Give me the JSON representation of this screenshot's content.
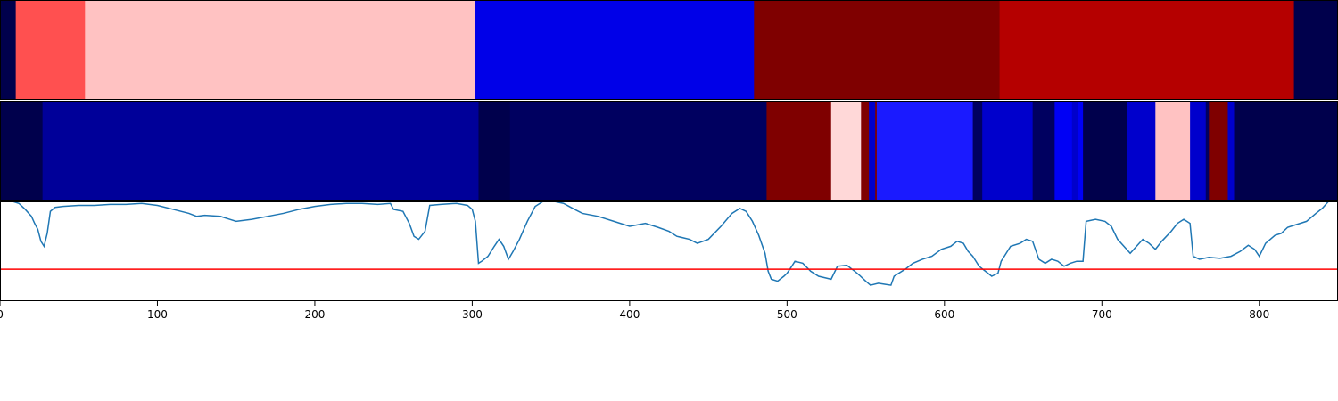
{
  "chart_data": {
    "type": "heatmap",
    "xlim": [
      0,
      850
    ],
    "x_ticks": [
      {
        "value": 0,
        "label": "0"
      },
      {
        "value": 100,
        "label": "100"
      },
      {
        "value": 200,
        "label": "200"
      },
      {
        "value": 300,
        "label": "300"
      },
      {
        "value": 400,
        "label": "400"
      },
      {
        "value": 500,
        "label": "500"
      },
      {
        "value": 600,
        "label": "600"
      },
      {
        "value": 700,
        "label": "700"
      },
      {
        "value": 800,
        "label": "800"
      }
    ],
    "colormap": "seismic",
    "grid": false,
    "tracks": [
      {
        "segments": [
          {
            "start": 0,
            "end": 10,
            "color": "#00004c"
          },
          {
            "start": 10,
            "end": 54,
            "color": "#ff5050"
          },
          {
            "start": 54,
            "end": 302,
            "color": "#ffc2c2"
          },
          {
            "start": 302,
            "end": 479,
            "color": "#0000e8"
          },
          {
            "start": 479,
            "end": 635,
            "color": "#7f0000"
          },
          {
            "start": 635,
            "end": 822,
            "color": "#b50000"
          },
          {
            "start": 822,
            "end": 850,
            "color": "#00004c"
          }
        ]
      },
      {
        "segments": [
          {
            "start": 0,
            "end": 27,
            "color": "#00004c"
          },
          {
            "start": 27,
            "end": 304,
            "color": "#000099"
          },
          {
            "start": 304,
            "end": 324,
            "color": "#00004c"
          },
          {
            "start": 324,
            "end": 487,
            "color": "#000060"
          },
          {
            "start": 487,
            "end": 528,
            "color": "#7f0000"
          },
          {
            "start": 528,
            "end": 547,
            "color": "#ffd8d8"
          },
          {
            "start": 547,
            "end": 552,
            "color": "#7f0000"
          },
          {
            "start": 552,
            "end": 556,
            "color": "#0000cc"
          },
          {
            "start": 556,
            "end": 557,
            "color": "#7f0000"
          },
          {
            "start": 557,
            "end": 618,
            "color": "#1a1aff"
          },
          {
            "start": 618,
            "end": 624,
            "color": "#000060"
          },
          {
            "start": 624,
            "end": 656,
            "color": "#0000cc"
          },
          {
            "start": 656,
            "end": 670,
            "color": "#000060"
          },
          {
            "start": 670,
            "end": 681,
            "color": "#0000f5"
          },
          {
            "start": 681,
            "end": 685,
            "color": "#0000cc"
          },
          {
            "start": 685,
            "end": 688,
            "color": "#0000f5"
          },
          {
            "start": 688,
            "end": 716,
            "color": "#00004c"
          },
          {
            "start": 716,
            "end": 734,
            "color": "#0000cc"
          },
          {
            "start": 734,
            "end": 756,
            "color": "#ffc2c2"
          },
          {
            "start": 756,
            "end": 766,
            "color": "#0000cc"
          },
          {
            "start": 766,
            "end": 768,
            "color": "#000060"
          },
          {
            "start": 768,
            "end": 780,
            "color": "#7f0000"
          },
          {
            "start": 780,
            "end": 784,
            "color": "#0000cc"
          },
          {
            "start": 784,
            "end": 850,
            "color": "#00004c"
          }
        ]
      }
    ],
    "line": {
      "color": "#1f77b4",
      "ylim": [
        0,
        1
      ],
      "points": [
        [
          0,
          1.0
        ],
        [
          8,
          1.0
        ],
        [
          12,
          0.98
        ],
        [
          16,
          0.92
        ],
        [
          20,
          0.85
        ],
        [
          22,
          0.78
        ],
        [
          24,
          0.72
        ],
        [
          26,
          0.6
        ],
        [
          28,
          0.55
        ],
        [
          30,
          0.68
        ],
        [
          32,
          0.9
        ],
        [
          35,
          0.94
        ],
        [
          40,
          0.95
        ],
        [
          50,
          0.96
        ],
        [
          60,
          0.96
        ],
        [
          70,
          0.97
        ],
        [
          80,
          0.97
        ],
        [
          90,
          0.98
        ],
        [
          100,
          0.96
        ],
        [
          110,
          0.92
        ],
        [
          120,
          0.88
        ],
        [
          125,
          0.85
        ],
        [
          130,
          0.86
        ],
        [
          140,
          0.85
        ],
        [
          150,
          0.8
        ],
        [
          160,
          0.82
        ],
        [
          170,
          0.85
        ],
        [
          180,
          0.88
        ],
        [
          190,
          0.92
        ],
        [
          200,
          0.95
        ],
        [
          210,
          0.97
        ],
        [
          220,
          0.98
        ],
        [
          230,
          0.98
        ],
        [
          240,
          0.97
        ],
        [
          248,
          0.98
        ],
        [
          250,
          0.92
        ],
        [
          256,
          0.9
        ],
        [
          260,
          0.78
        ],
        [
          263,
          0.65
        ],
        [
          266,
          0.62
        ],
        [
          270,
          0.7
        ],
        [
          273,
          0.96
        ],
        [
          280,
          0.97
        ],
        [
          290,
          0.98
        ],
        [
          297,
          0.96
        ],
        [
          300,
          0.92
        ],
        [
          302,
          0.8
        ],
        [
          304,
          0.38
        ],
        [
          306,
          0.4
        ],
        [
          310,
          0.45
        ],
        [
          314,
          0.55
        ],
        [
          317,
          0.62
        ],
        [
          320,
          0.55
        ],
        [
          323,
          0.42
        ],
        [
          326,
          0.5
        ],
        [
          330,
          0.62
        ],
        [
          335,
          0.8
        ],
        [
          340,
          0.95
        ],
        [
          345,
          1.0
        ],
        [
          352,
          1.0
        ],
        [
          358,
          0.98
        ],
        [
          365,
          0.92
        ],
        [
          370,
          0.88
        ],
        [
          380,
          0.85
        ],
        [
          390,
          0.8
        ],
        [
          400,
          0.75
        ],
        [
          410,
          0.78
        ],
        [
          418,
          0.74
        ],
        [
          425,
          0.7
        ],
        [
          430,
          0.65
        ],
        [
          438,
          0.62
        ],
        [
          443,
          0.58
        ],
        [
          450,
          0.62
        ],
        [
          458,
          0.75
        ],
        [
          465,
          0.88
        ],
        [
          470,
          0.93
        ],
        [
          474,
          0.9
        ],
        [
          478,
          0.8
        ],
        [
          482,
          0.66
        ],
        [
          486,
          0.48
        ],
        [
          488,
          0.3
        ],
        [
          490,
          0.22
        ],
        [
          494,
          0.2
        ],
        [
          498,
          0.25
        ],
        [
          500,
          0.28
        ],
        [
          503,
          0.35
        ],
        [
          505,
          0.4
        ],
        [
          510,
          0.38
        ],
        [
          515,
          0.3
        ],
        [
          520,
          0.25
        ],
        [
          528,
          0.22
        ],
        [
          532,
          0.35
        ],
        [
          538,
          0.36
        ],
        [
          543,
          0.3
        ],
        [
          546,
          0.26
        ],
        [
          550,
          0.2
        ],
        [
          553,
          0.16
        ],
        [
          558,
          0.18
        ],
        [
          562,
          0.17
        ],
        [
          566,
          0.16
        ],
        [
          568,
          0.25
        ],
        [
          575,
          0.32
        ],
        [
          580,
          0.38
        ],
        [
          586,
          0.42
        ],
        [
          592,
          0.45
        ],
        [
          598,
          0.52
        ],
        [
          604,
          0.55
        ],
        [
          608,
          0.6
        ],
        [
          612,
          0.58
        ],
        [
          615,
          0.5
        ],
        [
          618,
          0.45
        ],
        [
          622,
          0.35
        ],
        [
          626,
          0.3
        ],
        [
          630,
          0.25
        ],
        [
          634,
          0.28
        ],
        [
          636,
          0.4
        ],
        [
          638,
          0.45
        ],
        [
          642,
          0.55
        ],
        [
          648,
          0.58
        ],
        [
          652,
          0.62
        ],
        [
          656,
          0.6
        ],
        [
          660,
          0.42
        ],
        [
          664,
          0.38
        ],
        [
          668,
          0.42
        ],
        [
          672,
          0.4
        ],
        [
          676,
          0.35
        ],
        [
          680,
          0.38
        ],
        [
          684,
          0.4
        ],
        [
          688,
          0.4
        ],
        [
          690,
          0.8
        ],
        [
          696,
          0.82
        ],
        [
          702,
          0.8
        ],
        [
          706,
          0.75
        ],
        [
          710,
          0.62
        ],
        [
          714,
          0.55
        ],
        [
          718,
          0.48
        ],
        [
          722,
          0.55
        ],
        [
          726,
          0.62
        ],
        [
          730,
          0.58
        ],
        [
          734,
          0.52
        ],
        [
          738,
          0.6
        ],
        [
          744,
          0.7
        ],
        [
          748,
          0.78
        ],
        [
          752,
          0.82
        ],
        [
          756,
          0.78
        ],
        [
          758,
          0.45
        ],
        [
          762,
          0.42
        ],
        [
          768,
          0.44
        ],
        [
          775,
          0.43
        ],
        [
          782,
          0.45
        ],
        [
          788,
          0.5
        ],
        [
          793,
          0.56
        ],
        [
          797,
          0.52
        ],
        [
          800,
          0.45
        ],
        [
          804,
          0.58
        ],
        [
          810,
          0.66
        ],
        [
          814,
          0.68
        ],
        [
          818,
          0.74
        ],
        [
          822,
          0.76
        ],
        [
          826,
          0.78
        ],
        [
          830,
          0.8
        ],
        [
          836,
          0.88
        ],
        [
          840,
          0.93
        ],
        [
          844,
          1.0
        ],
        [
          850,
          1.0
        ]
      ]
    },
    "threshold": {
      "y": 0.32,
      "color": "#ff0000"
    }
  }
}
